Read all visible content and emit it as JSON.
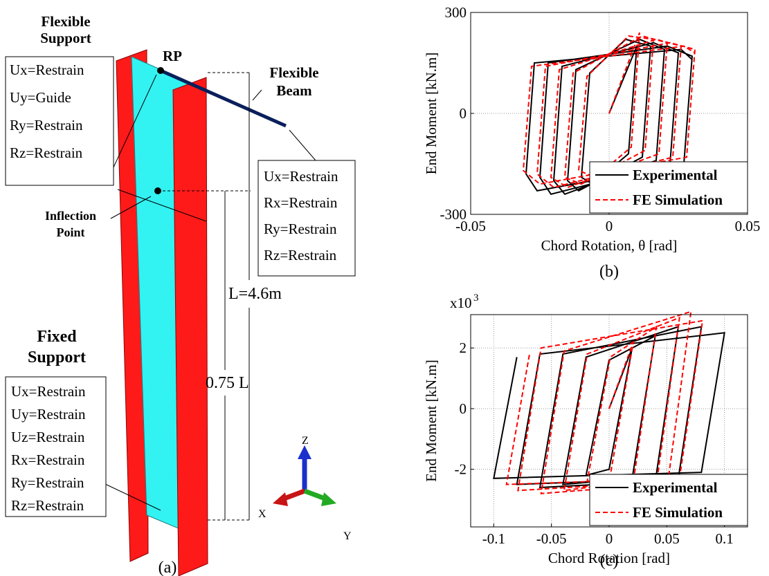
{
  "diagram": {
    "caption": "(a)",
    "flexible_support": {
      "title": [
        "Flexible",
        "Support"
      ],
      "conditions": [
        "Ux=Restrain",
        "Uy=Guide",
        "Ry=Restrain",
        "Rz=Restrain"
      ]
    },
    "rp": "RP",
    "flexible_beam": {
      "title": [
        "Flexible",
        "Beam"
      ],
      "conditions": [
        "Ux=Restrain",
        "Rx=Restrain",
        "Ry=Restrain",
        "Rz=Restrain"
      ]
    },
    "inflection_point": [
      "Inflection",
      "Point"
    ],
    "length": "L=4.6m",
    "inflection_height": "0.75 L",
    "fixed_support": {
      "title": [
        "Fixed",
        "Support"
      ],
      "conditions": [
        "Ux=Restrain",
        "Uy=Restrain",
        "Uz=Restrain",
        "Rx=Restrain",
        "Ry=Restrain",
        "Rz=Restrain"
      ]
    },
    "axes": {
      "z": "Z",
      "x": "X",
      "y": "Y"
    }
  },
  "chart_data": [
    {
      "type": "line",
      "caption": "(b)",
      "x_label": "Chord Rotation, θ [rad]",
      "y_label": "End Moment [kN.m]",
      "xlim": [
        -0.05,
        0.05
      ],
      "xticks": [
        -0.05,
        0,
        0.05
      ],
      "ylim": [
        -300,
        300
      ],
      "yticks": [
        -300,
        0,
        300
      ],
      "grid": true,
      "legend": "lower right",
      "series": [
        {
          "name": "Experimental",
          "color": "#000000",
          "line_style": "solid",
          "x": [
            0,
            0.01,
            0.007,
            -0.006,
            -0.01,
            -0.007,
            0.006,
            0.015,
            0.012,
            -0.011,
            -0.015,
            -0.012,
            0.011,
            0.02,
            0.017,
            -0.016,
            -0.02,
            -0.017,
            0.016,
            0.025,
            0.022,
            -0.021,
            -0.025,
            -0.022,
            0.021,
            0.03,
            0.027,
            -0.026,
            -0.03,
            -0.027,
            0.026,
            0.03
          ],
          "values": [
            0,
            200,
            -120,
            -210,
            -190,
            120,
            220,
            200,
            -130,
            -230,
            -200,
            130,
            220,
            190,
            -140,
            -240,
            -200,
            140,
            210,
            180,
            -150,
            -240,
            -190,
            150,
            200,
            170,
            -150,
            -230,
            -180,
            150,
            190,
            160
          ]
        },
        {
          "name": "FE Simulation",
          "color": "#ff0000",
          "line_style": "dashed",
          "x": [
            0,
            0.011,
            0.008,
            -0.005,
            -0.011,
            -0.008,
            0.007,
            0.016,
            0.013,
            -0.01,
            -0.016,
            -0.013,
            0.012,
            0.021,
            0.018,
            -0.015,
            -0.021,
            -0.018,
            0.017,
            0.026,
            0.023,
            -0.02,
            -0.026,
            -0.023,
            0.022,
            0.031,
            0.028,
            -0.025,
            -0.031,
            -0.028,
            0.027,
            0.031
          ],
          "values": [
            0,
            240,
            -100,
            -190,
            -170,
            110,
            230,
            220,
            -110,
            -210,
            -190,
            120,
            230,
            210,
            -120,
            -220,
            -190,
            130,
            220,
            200,
            -130,
            -220,
            -180,
            140,
            210,
            190,
            -130,
            -210,
            -170,
            140,
            200,
            180
          ]
        }
      ]
    },
    {
      "type": "line",
      "caption": "(c)",
      "x_label": "Chord Rotation [rad]",
      "y_label": "End Moment [kN.m]",
      "y_multiplier": {
        "base": "x10",
        "exponent": "3"
      },
      "xlim": [
        -0.12,
        0.12
      ],
      "xticks": [
        -0.1,
        -0.05,
        0,
        0.05,
        0.1
      ],
      "ylim": [
        -3.9,
        3.1
      ],
      "yticks": [
        -2,
        0,
        2
      ],
      "grid": true,
      "legend": "lower right",
      "series": [
        {
          "name": "Experimental",
          "color": "#000000",
          "line_style": "solid",
          "x": [
            0,
            0.02,
            0.0,
            -0.02,
            0.0,
            0.04,
            0.02,
            -0.04,
            -0.02,
            0.06,
            0.04,
            -0.06,
            -0.04,
            0.08,
            0.06,
            -0.08,
            -0.06,
            0.1,
            0.08,
            -0.1,
            -0.08
          ],
          "values": [
            0,
            2.0,
            -2.0,
            -2.2,
            1.6,
            2.4,
            -2.3,
            -2.5,
            1.7,
            2.7,
            -2.4,
            -2.6,
            1.8,
            2.7,
            -2.3,
            -2.5,
            1.8,
            2.5,
            -2.1,
            -2.3,
            1.7
          ]
        },
        {
          "name": "FE Simulation",
          "color": "#ff0000",
          "line_style": "dashed",
          "x": [
            0,
            0.021,
            0.001,
            -0.019,
            0.001,
            0.041,
            0.021,
            -0.039,
            -0.019,
            0.061,
            0.041,
            -0.059,
            -0.039,
            0.071,
            0.051,
            -0.079,
            -0.059,
            0.081,
            0.061,
            -0.089,
            -0.069
          ],
          "values": [
            0,
            2.2,
            -2.2,
            -2.4,
            1.7,
            2.7,
            -2.4,
            -2.7,
            1.8,
            3.0,
            -2.5,
            -2.8,
            1.9,
            3.2,
            -2.4,
            -2.7,
            2.0,
            2.9,
            -2.3,
            -2.5,
            1.8
          ]
        }
      ]
    }
  ]
}
